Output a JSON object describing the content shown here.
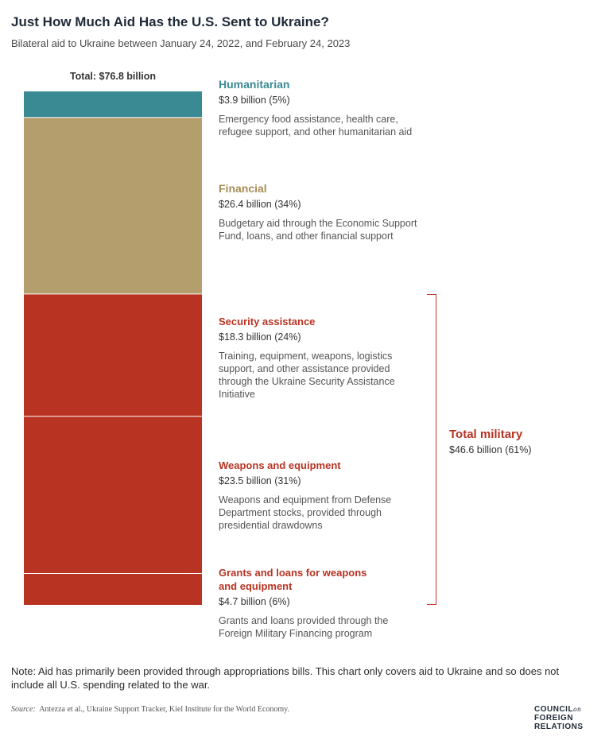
{
  "header": {
    "title": "Just How Much Aid Has the U.S. Sent to Ukraine?",
    "subtitle": "Bilateral aid to Ukraine between January 24, 2022, and February 24, 2023"
  },
  "chart_data": {
    "type": "bar",
    "stacked": true,
    "title": "Just How Much Aid Has the U.S. Sent to Ukraine?",
    "subtitle": "Bilateral aid to Ukraine between January 24, 2022, and February 24, 2023",
    "total_label": "Total: $76.8 billion",
    "total": 76.8,
    "unit": "billion USD",
    "segments": [
      {
        "name": "Humanitarian",
        "value": 3.9,
        "amount_label": "$3.9 billion (5%)",
        "percent": 5,
        "color": "#3a8a94",
        "description": "Emergency food assistance, health care, refugee support, and other humanitarian aid"
      },
      {
        "name": "Financial",
        "value": 26.4,
        "amount_label": "$26.4 billion (34%)",
        "percent": 34,
        "color": "#b59e6d",
        "description": "Budgetary aid through the Economic Support Fund, loans, and other financial support"
      },
      {
        "name": "Security assistance",
        "value": 18.3,
        "amount_label": "$18.3 billion (24%)",
        "percent": 24,
        "color": "#b83322",
        "description": "Training, equipment, weapons, logistics support, and other assistance provided through the Ukraine Security Assistance Initiative"
      },
      {
        "name": "Weapons and equipment",
        "value": 23.5,
        "amount_label": "$23.5 billion (31%)",
        "percent": 31,
        "color": "#b83322",
        "description": "Weapons and equipment from Defense Department stocks, provided through presidential drawdowns"
      },
      {
        "name": "Grants and loans for weapons and equipment",
        "value": 4.7,
        "amount_label": "$4.7 billion (6%)",
        "percent": 6,
        "color": "#b83322",
        "description": "Grants and loans provided through the Foreign Military Financing program"
      }
    ],
    "group": {
      "name": "Total military",
      "value": 46.6,
      "amount_label": "$46.6 billion (61%)",
      "percent": 61,
      "color": "#b83322"
    }
  },
  "footer": {
    "note": "Note: Aid has primarily been provided through appropriations bills. This chart only covers aid to Ukraine and so does not include all U.S. spending related to the war.",
    "source_label": "Source:",
    "source_text": "Antezza et al., Ukraine Support Tracker, Kiel Institute for the World Economy.",
    "logo_line1": "COUNCIL",
    "logo_on": "on",
    "logo_line2": "FOREIGN",
    "logo_line3": "RELATIONS"
  }
}
